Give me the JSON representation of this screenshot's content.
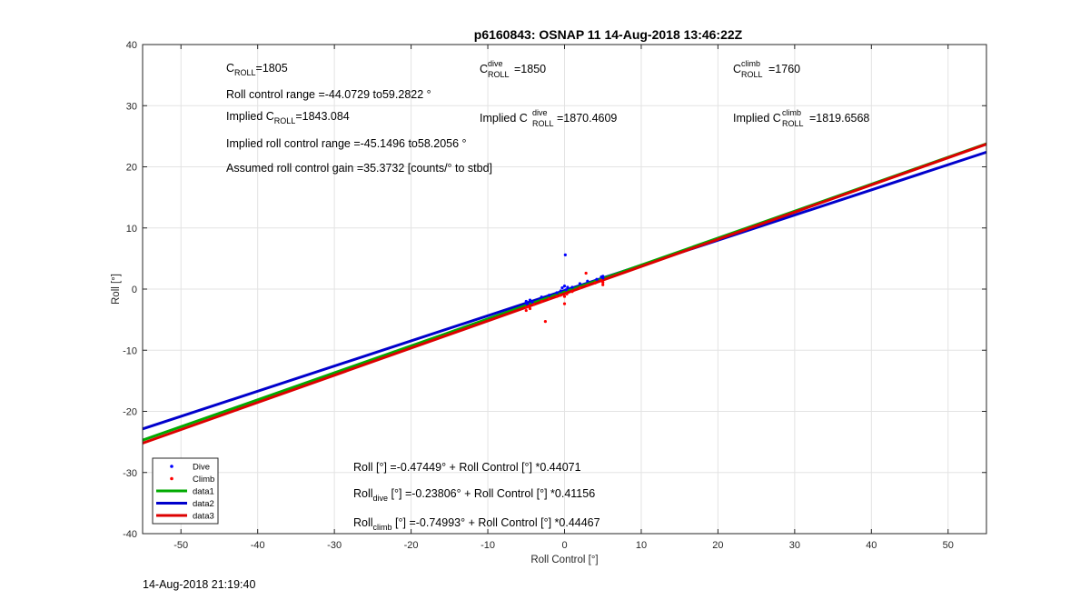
{
  "chart_data": {
    "type": "scatter",
    "title": "p6160843: OSNAP 11 14-Aug-2018 13:46:22Z",
    "xlabel": "Roll Control [°]",
    "ylabel": "Roll [°]",
    "xlim": [
      -55,
      55
    ],
    "ylim": [
      -40,
      40
    ],
    "xticks": [
      -50,
      -40,
      -30,
      -20,
      -10,
      0,
      10,
      20,
      30,
      40,
      50
    ],
    "yticks": [
      -40,
      -30,
      -20,
      -10,
      0,
      10,
      20,
      30,
      40
    ],
    "grid": true,
    "legend_position": "bottom-left",
    "series": [
      {
        "name": "Dive",
        "kind": "points",
        "color": "#0000ff",
        "points": [
          [
            -5,
            -2.3
          ],
          [
            -5,
            -2.0
          ],
          [
            -4.8,
            -2.5
          ],
          [
            -4.5,
            -1.8
          ],
          [
            -4.2,
            -2.1
          ],
          [
            -3,
            -1.3
          ],
          [
            -2,
            -1.0
          ],
          [
            -1,
            -0.6
          ],
          [
            -0.5,
            -0.3
          ],
          [
            -0.3,
            0.2
          ],
          [
            0,
            0.5
          ],
          [
            0.2,
            -0.1
          ],
          [
            0.4,
            0.3
          ],
          [
            1,
            0.3
          ],
          [
            2,
            0.9
          ],
          [
            3,
            1.3
          ],
          [
            4.2,
            1.6
          ],
          [
            4.8,
            2.0
          ],
          [
            5,
            1.8
          ],
          [
            5,
            2.1
          ],
          [
            0.1,
            5.6
          ]
        ]
      },
      {
        "name": "Climb",
        "kind": "points",
        "color": "#ff0000",
        "points": [
          [
            -5,
            -3.5
          ],
          [
            -5,
            -3.0
          ],
          [
            -4.7,
            -2.8
          ],
          [
            -4.5,
            -3.2
          ],
          [
            -4,
            -2.5
          ],
          [
            -3,
            -2.0
          ],
          [
            -2.5,
            -5.3
          ],
          [
            -2,
            -1.6
          ],
          [
            -1,
            -1.2
          ],
          [
            -0.5,
            -1.0
          ],
          [
            0,
            -1.2
          ],
          [
            0,
            -2.4
          ],
          [
            0.3,
            -0.8
          ],
          [
            1,
            -0.4
          ],
          [
            2,
            0.2
          ],
          [
            2.8,
            2.6
          ],
          [
            3,
            0.6
          ],
          [
            4,
            1.0
          ],
          [
            4.8,
            1.4
          ],
          [
            5,
            1.1
          ],
          [
            5,
            0.7
          ]
        ]
      },
      {
        "name": "data1",
        "kind": "line",
        "color": "#00aa00",
        "intercept": -0.47449,
        "slope": 0.44071
      },
      {
        "name": "data2",
        "kind": "line",
        "color": "#0000cc",
        "intercept": -0.23806,
        "slope": 0.41156
      },
      {
        "name": "data3",
        "kind": "line",
        "color": "#dd0000",
        "intercept": -0.74993,
        "slope": 0.44467
      }
    ]
  },
  "annotations": {
    "c_roll": {
      "base": "C",
      "sub": "ROLL",
      "value": "=1805"
    },
    "c_roll_dive": {
      "base": "C",
      "sup": "dive",
      "sub": "ROLL",
      "value": "=1850"
    },
    "c_roll_climb": {
      "base": "C",
      "sup": "climb",
      "sub": "ROLL",
      "value": "=1760"
    },
    "roll_control_range": "Roll control range =-44.0729 to59.2822 °",
    "implied_c_roll": {
      "prefix": "Implied C",
      "sub": "ROLL",
      "value": "=1843.084"
    },
    "implied_c_roll_dive": {
      "prefix": "Implied C",
      "sup": "dive",
      "sub": "ROLL",
      "value": "=1870.4609"
    },
    "implied_c_roll_climb": {
      "prefix": "Implied C",
      "sup": "climb",
      "sub": "ROLL",
      "value": "=1819.6568"
    },
    "implied_range": "Implied roll control range =-45.1496 to58.2056 °",
    "assumed_gain": "Assumed roll control gain =35.3732 [counts/° to stbd]",
    "fit_all": "Roll [°] =-0.47449° + Roll Control [°] *0.44071",
    "fit_dive": {
      "base": "Roll",
      "sub": "dive",
      "rest": " [°] =-0.23806° + Roll Control [°] *0.41156"
    },
    "fit_climb": {
      "base": "Roll",
      "sub": "climb",
      "rest": " [°] =-0.74993° + Roll Control [°] *0.44467"
    }
  },
  "footer_timestamp": "14-Aug-2018 21:19:40"
}
